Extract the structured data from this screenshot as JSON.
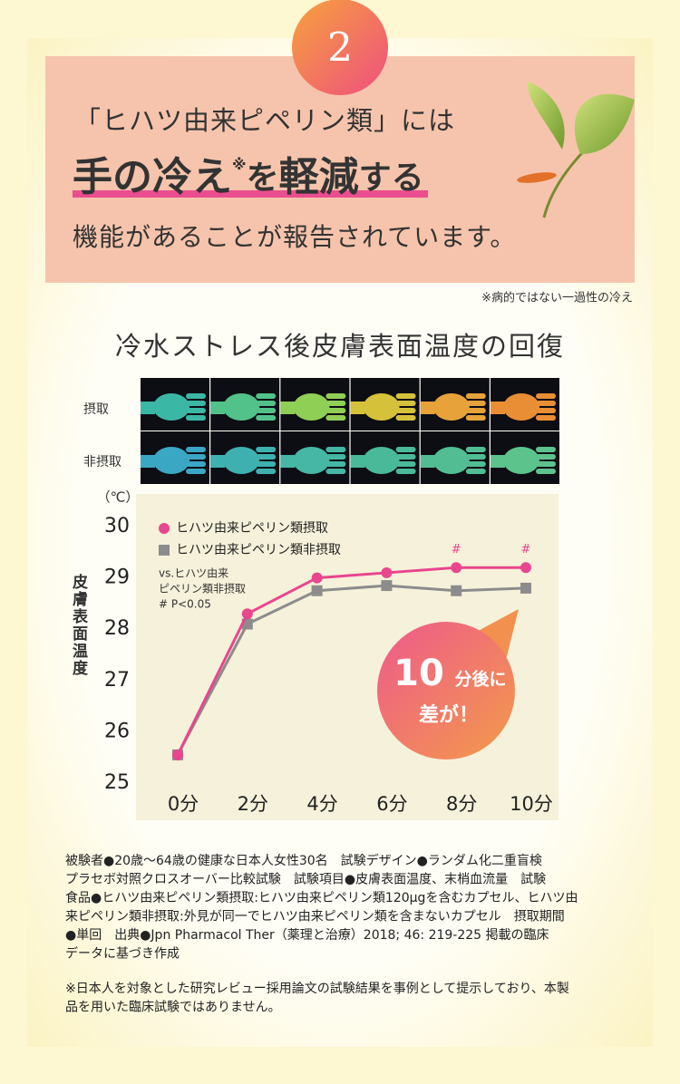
{
  "badge": "2",
  "intro": "「ヒハツ由来ピペリン類」には",
  "headline": [
    "手の冷え",
    "※",
    "を",
    "軽減",
    "する"
  ],
  "outro": "機能があることが報告されています。",
  "footnote": "※病的ではない一過性の冷え",
  "section_title": "冷水ストレス後皮膚表面温度の回復",
  "image_labels": [
    "摂取",
    "非摂取"
  ],
  "chart_data": {
    "type": "line",
    "y_unit": "（℃）",
    "y_label": "皮膚表面温度",
    "categories": [
      "0分",
      "2分",
      "4分",
      "6分",
      "8分",
      "10分"
    ],
    "series": [
      {
        "name": "ヒハツ由来ピペリン類摂取",
        "color": "#e8468f",
        "values": [
          25.55,
          28.3,
          29.0,
          29.1,
          29.2,
          29.2
        ],
        "significance": [
          null,
          null,
          null,
          null,
          "#",
          "#"
        ]
      },
      {
        "name": "ヒハツ由来ピペリン類非摂取",
        "color": "#8c8c8c",
        "values": [
          25.55,
          28.1,
          28.75,
          28.85,
          28.75,
          28.8
        ]
      }
    ],
    "note": [
      "vs.ヒハツ由来",
      "ピペリン類非摂取",
      "# P<0.05"
    ],
    "callout": [
      "10",
      "分後に",
      "差が！"
    ],
    "ylim": [
      25,
      30
    ],
    "yticks": [
      25,
      26,
      27,
      28,
      29,
      30
    ]
  },
  "study_details": [
    "被験者●20歳～64歳の健康な日本人女性30名　試験デザイン●ランダム化二重盲検",
    "プラセボ対照クロスオーバー比較試験　試験項目●皮膚表面温度、末梢血流量　試験",
    "食品●ヒハツ由来ピペリン類摂取:ヒハツ由来ピペリン類120μgを含むカプセル、ヒハツ由",
    "来ピペリン類非摂取:外見が同一でヒハツ由来ピペリン類を含まないカプセル　摂取期間",
    "●単回　出典●Jpn Pharmacol Ther（薬理と治療）2018; 46: 219-225 掲載の臨床",
    "データに基づき作成"
  ],
  "disclaimer": [
    "※日本人を対象とした研究レビュー採用論文の試験結果を事例として提示しており、本製",
    "品を用いた臨床試験ではありません。"
  ]
}
